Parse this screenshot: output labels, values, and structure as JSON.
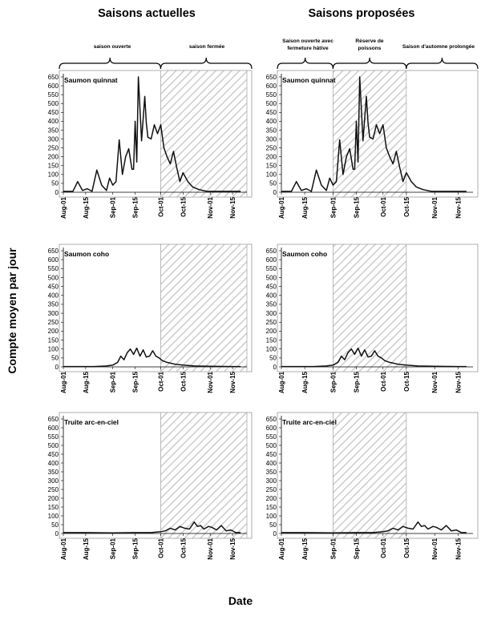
{
  "figure": {
    "col_titles": [
      "Saisons actuelles",
      "Saisons proposées"
    ],
    "ylabel": "Compte moyen par jour",
    "xlabel": "Date",
    "x_ticks": [
      "Aug-01",
      "Aug-15",
      "Sep-01",
      "Sep-15",
      "Oct-01",
      "Oct-15",
      "Nov-01",
      "Nov-15"
    ],
    "y_ticks": [
      0,
      50,
      100,
      150,
      200,
      250,
      300,
      350,
      400,
      450,
      500,
      550,
      600,
      650
    ],
    "brackets": {
      "current": [
        "saison ouverte",
        "saison fermée"
      ],
      "proposed": [
        [
          "Saison ouverte avec",
          "fermeture hâtive"
        ],
        [
          "Réserve de",
          "poissons"
        ],
        [
          "Saison d'automne prolongée"
        ]
      ]
    },
    "hatch_color": "#cccccc"
  },
  "chart_data": [
    {
      "type": "line",
      "panel": "actuelles-quinnat",
      "title": "Saumon quinnat",
      "x": [
        "Aug-01",
        "Aug-04",
        "Aug-07",
        "Aug-10",
        "Aug-13",
        "Aug-16",
        "Aug-19",
        "Aug-22",
        "Aug-25",
        "Aug-28",
        "Aug-30",
        "Sep-01",
        "Sep-03",
        "Sep-05",
        "Sep-07",
        "Sep-09",
        "Sep-11",
        "Sep-13",
        "Sep-14",
        "Sep-15",
        "Sep-16",
        "Sep-17",
        "Sep-19",
        "Sep-21",
        "Sep-22",
        "Sep-23",
        "Sep-25",
        "Sep-27",
        "Sep-29",
        "Oct-01",
        "Oct-03",
        "Oct-05",
        "Oct-07",
        "Oct-09",
        "Oct-11",
        "Oct-13",
        "Oct-15",
        "Oct-18",
        "Oct-21",
        "Oct-25",
        "Oct-30",
        "Nov-05",
        "Nov-12",
        "Nov-20"
      ],
      "y": [
        5,
        5,
        5,
        60,
        10,
        20,
        5,
        125,
        40,
        10,
        80,
        40,
        60,
        295,
        100,
        200,
        245,
        130,
        130,
        400,
        170,
        650,
        290,
        540,
        390,
        310,
        300,
        380,
        330,
        380,
        250,
        200,
        160,
        230,
        140,
        60,
        110,
        60,
        30,
        15,
        5,
        5,
        5,
        5
      ],
      "closed_periods": [
        [
          "Oct-01",
          "Nov-24"
        ]
      ],
      "ylim": [
        0,
        650
      ]
    },
    {
      "type": "line",
      "panel": "proposees-quinnat",
      "title": "Saumon quinnat",
      "x": [
        "Aug-01",
        "Aug-04",
        "Aug-07",
        "Aug-10",
        "Aug-13",
        "Aug-16",
        "Aug-19",
        "Aug-22",
        "Aug-25",
        "Aug-28",
        "Aug-30",
        "Sep-01",
        "Sep-03",
        "Sep-05",
        "Sep-07",
        "Sep-09",
        "Sep-11",
        "Sep-13",
        "Sep-14",
        "Sep-15",
        "Sep-16",
        "Sep-17",
        "Sep-19",
        "Sep-21",
        "Sep-22",
        "Sep-23",
        "Sep-25",
        "Sep-27",
        "Sep-29",
        "Oct-01",
        "Oct-03",
        "Oct-05",
        "Oct-07",
        "Oct-09",
        "Oct-11",
        "Oct-13",
        "Oct-15",
        "Oct-18",
        "Oct-21",
        "Oct-25",
        "Oct-30",
        "Nov-05",
        "Nov-12",
        "Nov-20"
      ],
      "y": [
        5,
        5,
        5,
        60,
        10,
        20,
        5,
        125,
        40,
        10,
        80,
        40,
        60,
        295,
        100,
        200,
        245,
        130,
        130,
        400,
        170,
        650,
        290,
        540,
        390,
        310,
        300,
        380,
        330,
        380,
        250,
        200,
        160,
        230,
        140,
        60,
        110,
        60,
        30,
        15,
        5,
        5,
        5,
        5
      ],
      "closed_periods": [
        [
          "Sep-01",
          "Oct-15"
        ]
      ],
      "ylim": [
        0,
        650
      ]
    },
    {
      "type": "line",
      "panel": "actuelles-coho",
      "title": "Saumon coho",
      "x": [
        "Aug-01",
        "Aug-10",
        "Aug-20",
        "Aug-28",
        "Sep-01",
        "Sep-04",
        "Sep-06",
        "Sep-08",
        "Sep-10",
        "Sep-12",
        "Sep-14",
        "Sep-16",
        "Sep-18",
        "Sep-20",
        "Sep-22",
        "Sep-24",
        "Sep-26",
        "Sep-28",
        "Sep-30",
        "Oct-02",
        "Oct-05",
        "Oct-10",
        "Oct-15",
        "Oct-22",
        "Nov-01",
        "Nov-15",
        "Nov-20"
      ],
      "y": [
        2,
        2,
        2,
        5,
        10,
        25,
        60,
        40,
        80,
        100,
        70,
        105,
        60,
        95,
        55,
        60,
        90,
        60,
        50,
        35,
        25,
        15,
        10,
        5,
        3,
        2,
        2
      ],
      "closed_periods": [
        [
          "Oct-01",
          "Nov-24"
        ]
      ],
      "ylim": [
        0,
        650
      ]
    },
    {
      "type": "line",
      "panel": "proposees-coho",
      "title": "Saumon coho",
      "x": [
        "Aug-01",
        "Aug-10",
        "Aug-20",
        "Aug-28",
        "Sep-01",
        "Sep-04",
        "Sep-06",
        "Sep-08",
        "Sep-10",
        "Sep-12",
        "Sep-14",
        "Sep-16",
        "Sep-18",
        "Sep-20",
        "Sep-22",
        "Sep-24",
        "Sep-26",
        "Sep-28",
        "Sep-30",
        "Oct-02",
        "Oct-05",
        "Oct-10",
        "Oct-15",
        "Oct-22",
        "Nov-01",
        "Nov-15",
        "Nov-20"
      ],
      "y": [
        2,
        2,
        2,
        5,
        10,
        25,
        60,
        40,
        80,
        100,
        70,
        105,
        60,
        95,
        55,
        60,
        90,
        60,
        50,
        35,
        25,
        15,
        10,
        5,
        3,
        2,
        2
      ],
      "closed_periods": [
        [
          "Sep-01",
          "Oct-15"
        ]
      ],
      "ylim": [
        0,
        650
      ]
    },
    {
      "type": "line",
      "panel": "actuelles-truite",
      "title": "Truite arc-en-ciel",
      "x": [
        "Aug-01",
        "Aug-15",
        "Sep-01",
        "Sep-15",
        "Sep-25",
        "Oct-01",
        "Oct-04",
        "Oct-07",
        "Oct-10",
        "Oct-13",
        "Oct-16",
        "Oct-19",
        "Oct-22",
        "Oct-24",
        "Oct-26",
        "Oct-28",
        "Oct-31",
        "Nov-02",
        "Nov-05",
        "Nov-08",
        "Nov-11",
        "Nov-14",
        "Nov-17",
        "Nov-20"
      ],
      "y": [
        5,
        5,
        3,
        5,
        5,
        10,
        15,
        30,
        20,
        40,
        30,
        25,
        65,
        40,
        45,
        25,
        40,
        35,
        20,
        45,
        15,
        20,
        5,
        5
      ],
      "closed_periods": [
        [
          "Oct-01",
          "Nov-24"
        ]
      ],
      "ylim": [
        0,
        650
      ]
    },
    {
      "type": "line",
      "panel": "proposees-truite",
      "title": "Truite arc-en-ciel",
      "x": [
        "Aug-01",
        "Aug-15",
        "Sep-01",
        "Sep-15",
        "Sep-25",
        "Oct-01",
        "Oct-04",
        "Oct-07",
        "Oct-10",
        "Oct-13",
        "Oct-16",
        "Oct-19",
        "Oct-22",
        "Oct-24",
        "Oct-26",
        "Oct-28",
        "Oct-31",
        "Nov-02",
        "Nov-05",
        "Nov-08",
        "Nov-11",
        "Nov-14",
        "Nov-17",
        "Nov-20"
      ],
      "y": [
        5,
        5,
        3,
        5,
        5,
        10,
        15,
        30,
        20,
        40,
        30,
        25,
        65,
        40,
        45,
        25,
        40,
        35,
        20,
        45,
        15,
        20,
        5,
        5
      ],
      "closed_periods": [
        [
          "Sep-01",
          "Oct-15"
        ]
      ],
      "ylim": [
        0,
        650
      ]
    }
  ]
}
